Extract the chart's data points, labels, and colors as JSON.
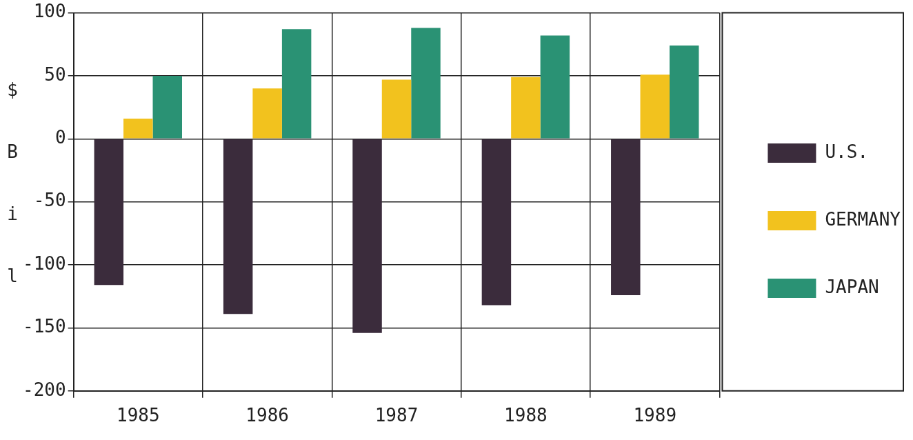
{
  "chart_data": {
    "type": "bar",
    "ylabel": "$ Bil",
    "categories": [
      "1985",
      "1986",
      "1987",
      "1988",
      "1989"
    ],
    "series": [
      {
        "name": "U.S.",
        "color": "#3b2c3c",
        "values": [
          -116,
          -139,
          -154,
          -132,
          -124
        ]
      },
      {
        "name": "GERMANY",
        "color": "#f2c21e",
        "values": [
          16,
          40,
          47,
          49,
          51
        ]
      },
      {
        "name": "JAPAN",
        "color": "#2a9274",
        "values": [
          50,
          87,
          88,
          82,
          74
        ]
      }
    ],
    "ylim": [
      -200,
      100
    ],
    "yticks": [
      -200,
      -150,
      -100,
      -50,
      0,
      50,
      100
    ],
    "grid": true,
    "legend": "right"
  }
}
